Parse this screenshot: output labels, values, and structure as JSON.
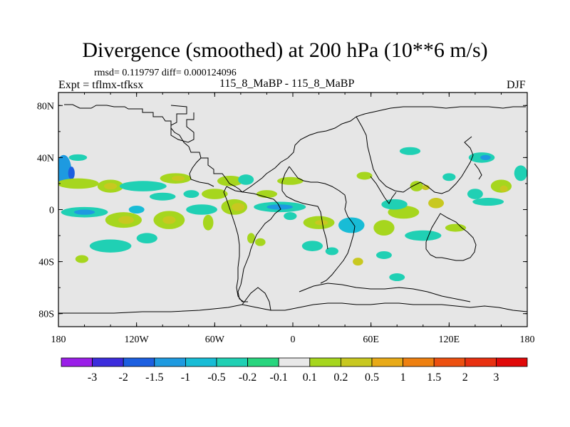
{
  "title": "Divergence (smoothed) at 200 hPa (10**6 m/s)",
  "stats": "rmsd= 0.119797 diff= 0.000124096",
  "expt": "Expt = tflmx-tfksx",
  "subtitle": "115_8_MaBP - 115_8_MaBP",
  "season": "DJF",
  "chart_data": {
    "type": "contour-map",
    "variable": "Divergence (smoothed)",
    "level": "200 hPa",
    "units": "10**6 m/s",
    "projection": "cylindrical equidistant",
    "lon_range": [
      -180,
      180
    ],
    "lat_range": [
      -90,
      90
    ],
    "lat_ticks": [
      {
        "value": 80,
        "label": "80N"
      },
      {
        "value": 40,
        "label": "40N"
      },
      {
        "value": 0,
        "label": "0"
      },
      {
        "value": -40,
        "label": "40S"
      },
      {
        "value": -80,
        "label": "80S"
      }
    ],
    "lon_ticks": [
      {
        "value": -180,
        "label": "180"
      },
      {
        "value": -120,
        "label": "120W"
      },
      {
        "value": -60,
        "label": "60W"
      },
      {
        "value": 0,
        "label": "0"
      },
      {
        "value": 60,
        "label": "60E"
      },
      {
        "value": 120,
        "label": "120E"
      },
      {
        "value": 180,
        "label": "180"
      }
    ],
    "colorbar": {
      "levels": [
        "-3",
        "-2",
        "-1.5",
        "-1",
        "-0.5",
        "-0.2",
        "-0.1",
        "0.1",
        "0.2",
        "0.5",
        "1",
        "1.5",
        "2",
        "3"
      ],
      "colors": [
        "#9a1ee8",
        "#3c2cdc",
        "#1c5fe0",
        "#1e9ae0",
        "#18bcd6",
        "#20d0b4",
        "#28d57e",
        "#e8e8e8",
        "#a6d61e",
        "#c8c820",
        "#e8aa18",
        "#ee8010",
        "#ec5010",
        "#e83010",
        "#e00808"
      ]
    },
    "blobs": [
      {
        "lon": -176,
        "lat": 30,
        "rlon": 6,
        "rlat": 12,
        "level": 3
      },
      {
        "lon": -170,
        "lat": 28,
        "rlon": 2.5,
        "rlat": 5,
        "level": 2
      },
      {
        "lon": -165,
        "lat": 20,
        "rlon": 16,
        "rlat": 4,
        "level": 8
      },
      {
        "lon": -140,
        "lat": 18,
        "rlon": 10,
        "rlat": 5,
        "level": 8
      },
      {
        "lon": -140,
        "lat": 18,
        "rlon": 5,
        "rlat": 2.5,
        "level": 9
      },
      {
        "lon": -115,
        "lat": 18,
        "rlon": 18,
        "rlat": 4,
        "level": 5
      },
      {
        "lon": -90,
        "lat": 24,
        "rlon": 12,
        "rlat": 4,
        "level": 8
      },
      {
        "lon": -88,
        "lat": 24,
        "rlon": 5,
        "rlat": 2,
        "level": 9
      },
      {
        "lon": -165,
        "lat": 40,
        "rlon": 7,
        "rlat": 2.5,
        "level": 5
      },
      {
        "lon": -100,
        "lat": 10,
        "rlon": 10,
        "rlat": 3,
        "level": 5
      },
      {
        "lon": -160,
        "lat": -2,
        "rlon": 18,
        "rlat": 4,
        "level": 5
      },
      {
        "lon": -160,
        "lat": -2,
        "rlon": 8,
        "rlat": 2,
        "level": 3
      },
      {
        "lon": -130,
        "lat": -8,
        "rlon": 14,
        "rlat": 6,
        "level": 8
      },
      {
        "lon": -128,
        "lat": -8,
        "rlon": 6,
        "rlat": 3,
        "level": 9
      },
      {
        "lon": -95,
        "lat": -8,
        "rlon": 12,
        "rlat": 7,
        "level": 8
      },
      {
        "lon": -95,
        "lat": -8,
        "rlon": 5,
        "rlat": 3,
        "level": 9
      },
      {
        "lon": -70,
        "lat": 0,
        "rlon": 12,
        "rlat": 4,
        "level": 5
      },
      {
        "lon": -60,
        "lat": 12,
        "rlon": 10,
        "rlat": 4,
        "level": 8
      },
      {
        "lon": -78,
        "lat": 12,
        "rlon": 6,
        "rlat": 3,
        "level": 5
      },
      {
        "lon": -140,
        "lat": -28,
        "rlon": 16,
        "rlat": 5,
        "level": 5
      },
      {
        "lon": -112,
        "lat": -22,
        "rlon": 8,
        "rlat": 4,
        "level": 5
      },
      {
        "lon": -162,
        "lat": -38,
        "rlon": 5,
        "rlat": 3,
        "level": 8
      },
      {
        "lon": -48,
        "lat": 22,
        "rlon": 10,
        "rlat": 4,
        "level": 8
      },
      {
        "lon": -36,
        "lat": 23,
        "rlon": 6,
        "rlat": 4,
        "level": 5
      },
      {
        "lon": -45,
        "lat": 2,
        "rlon": 10,
        "rlat": 6,
        "level": 8
      },
      {
        "lon": -42,
        "lat": 2,
        "rlon": 5,
        "rlat": 3,
        "level": 9
      },
      {
        "lon": -10,
        "lat": 2,
        "rlon": 20,
        "rlat": 4,
        "level": 5
      },
      {
        "lon": -10,
        "lat": 2,
        "rlon": 10,
        "rlat": 2,
        "level": 3
      },
      {
        "lon": -20,
        "lat": 12,
        "rlon": 8,
        "rlat": 3,
        "level": 8
      },
      {
        "lon": -2,
        "lat": 22,
        "rlon": 10,
        "rlat": 3,
        "level": 8
      },
      {
        "lon": -65,
        "lat": -10,
        "rlon": 4,
        "rlat": 6,
        "level": 8
      },
      {
        "lon": -32,
        "lat": -22,
        "rlon": 3,
        "rlat": 4,
        "level": 8
      },
      {
        "lon": 20,
        "lat": -10,
        "rlon": 12,
        "rlat": 5,
        "level": 8
      },
      {
        "lon": 22,
        "lat": -10,
        "rlon": 5,
        "rlat": 2,
        "level": 9
      },
      {
        "lon": 15,
        "lat": -28,
        "rlon": 8,
        "rlat": 4,
        "level": 5
      },
      {
        "lon": 45,
        "lat": -12,
        "rlon": 10,
        "rlat": 6,
        "level": 4
      },
      {
        "lon": 70,
        "lat": -14,
        "rlon": 8,
        "rlat": 6,
        "level": 8
      },
      {
        "lon": 85,
        "lat": -2,
        "rlon": 12,
        "rlat": 5,
        "level": 8
      },
      {
        "lon": 100,
        "lat": -20,
        "rlon": 14,
        "rlat": 4,
        "level": 5
      },
      {
        "lon": 78,
        "lat": 4,
        "rlon": 10,
        "rlat": 4,
        "level": 5
      },
      {
        "lon": 110,
        "lat": 5,
        "rlon": 6,
        "rlat": 4,
        "level": 9
      },
      {
        "lon": 150,
        "lat": 6,
        "rlon": 12,
        "rlat": 3,
        "level": 5
      },
      {
        "lon": 125,
        "lat": -14,
        "rlon": 8,
        "rlat": 3,
        "level": 8
      },
      {
        "lon": 95,
        "lat": 18,
        "rlon": 5,
        "rlat": 4,
        "level": 8
      },
      {
        "lon": 102,
        "lat": 17,
        "rlon": 3,
        "rlat": 2,
        "level": 9
      },
      {
        "lon": 175,
        "lat": 28,
        "rlon": 5,
        "rlat": 6,
        "level": 5
      },
      {
        "lon": 160,
        "lat": 18,
        "rlon": 8,
        "rlat": 5,
        "level": 8
      },
      {
        "lon": 162,
        "lat": 16,
        "rlon": 3,
        "rlat": 2.5,
        "level": 9
      },
      {
        "lon": 140,
        "lat": 12,
        "rlon": 6,
        "rlat": 4,
        "level": 5
      },
      {
        "lon": 145,
        "lat": 40,
        "rlon": 10,
        "rlat": 4,
        "level": 5
      },
      {
        "lon": 148,
        "lat": 40,
        "rlon": 4,
        "rlat": 2,
        "level": 3
      },
      {
        "lon": 90,
        "lat": 45,
        "rlon": 8,
        "rlat": 3,
        "level": 5
      },
      {
        "lon": 55,
        "lat": 26,
        "rlon": 6,
        "rlat": 3,
        "level": 8
      },
      {
        "lon": 50,
        "lat": -40,
        "rlon": 4,
        "rlat": 3,
        "level": 9
      },
      {
        "lon": 70,
        "lat": -35,
        "rlon": 6,
        "rlat": 3,
        "level": 5
      },
      {
        "lon": 30,
        "lat": -32,
        "rlon": 5,
        "rlat": 3,
        "level": 5
      },
      {
        "lon": 80,
        "lat": -52,
        "rlon": 6,
        "rlat": 3,
        "level": 5
      },
      {
        "lon": -25,
        "lat": -25,
        "rlon": 4,
        "rlat": 3,
        "level": 8
      },
      {
        "lon": -2,
        "lat": -5,
        "rlon": 5,
        "rlat": 3,
        "level": 5
      },
      {
        "lon": 120,
        "lat": 25,
        "rlon": 5,
        "rlat": 3,
        "level": 5
      },
      {
        "lon": -120,
        "lat": 0,
        "rlon": 6,
        "rlat": 3,
        "level": 4
      }
    ]
  }
}
